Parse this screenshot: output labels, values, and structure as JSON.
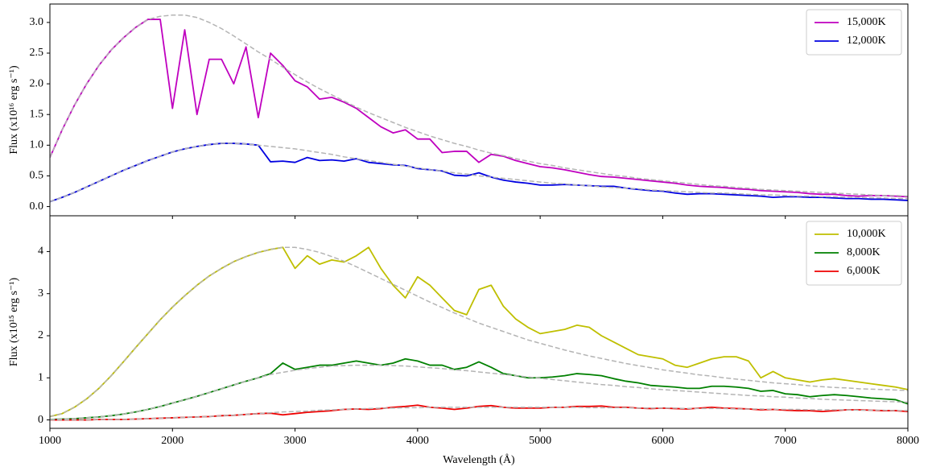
{
  "chart_data": [
    {
      "type": "line",
      "ylabel": "Flux (x10¹⁶ erg s⁻¹)",
      "x": [
        1000,
        1100,
        1200,
        1300,
        1400,
        1500,
        1600,
        1700,
        1800,
        1900,
        2000,
        2100,
        2200,
        2300,
        2400,
        2500,
        2600,
        2700,
        2800,
        2900,
        3000,
        3100,
        3200,
        3300,
        3400,
        3500,
        3600,
        3700,
        3800,
        3900,
        4000,
        4100,
        4200,
        4300,
        4400,
        4500,
        4600,
        4700,
        4800,
        4900,
        5000,
        5100,
        5200,
        5300,
        5400,
        5500,
        5600,
        5700,
        5800,
        5900,
        6000,
        6100,
        6200,
        6300,
        6400,
        6500,
        6600,
        6700,
        6800,
        6900,
        7000,
        7100,
        7200,
        7300,
        7400,
        7500,
        7600,
        7700,
        7800,
        7900,
        8000
      ],
      "xlim": [
        1000,
        8000
      ],
      "ylim": [
        -0.15,
        3.3
      ],
      "yticks": [
        {
          "value": 0,
          "label": "0.0"
        },
        0.5,
        {
          "value": 1,
          "label": "1.0"
        },
        1.5,
        {
          "value": 2,
          "label": "2.0"
        },
        2.5,
        {
          "value": 3,
          "label": "3.0"
        }
      ],
      "legend": "upper right",
      "series": [
        {
          "name": "15,000K",
          "color": "#bf00bf",
          "values": [
            0.8,
            1.25,
            1.65,
            2.0,
            2.3,
            2.55,
            2.75,
            2.92,
            3.05,
            3.05,
            1.6,
            2.88,
            1.5,
            2.4,
            2.4,
            2.0,
            2.6,
            1.45,
            2.5,
            2.3,
            2.05,
            1.95,
            1.75,
            1.78,
            1.7,
            1.6,
            1.45,
            1.3,
            1.2,
            1.25,
            1.1,
            1.1,
            0.88,
            0.9,
            0.9,
            0.72,
            0.85,
            0.82,
            0.75,
            0.7,
            0.65,
            0.63,
            0.6,
            0.56,
            0.52,
            0.49,
            0.48,
            0.46,
            0.44,
            0.42,
            0.4,
            0.38,
            0.35,
            0.33,
            0.32,
            0.31,
            0.29,
            0.28,
            0.26,
            0.25,
            0.24,
            0.23,
            0.21,
            0.2,
            0.2,
            0.18,
            0.17,
            0.18,
            0.18,
            0.17,
            0.16
          ]
        },
        {
          "name": "12,000K",
          "color": "#0000e0",
          "values": [
            0.08,
            0.15,
            0.23,
            0.32,
            0.41,
            0.5,
            0.59,
            0.67,
            0.75,
            0.82,
            0.89,
            0.94,
            0.98,
            1.01,
            1.03,
            1.03,
            1.02,
            1.0,
            0.73,
            0.74,
            0.72,
            0.8,
            0.75,
            0.76,
            0.74,
            0.78,
            0.72,
            0.7,
            0.68,
            0.67,
            0.62,
            0.6,
            0.58,
            0.51,
            0.5,
            0.55,
            0.48,
            0.43,
            0.4,
            0.38,
            0.35,
            0.35,
            0.36,
            0.35,
            0.34,
            0.33,
            0.33,
            0.3,
            0.28,
            0.26,
            0.25,
            0.22,
            0.2,
            0.21,
            0.21,
            0.2,
            0.19,
            0.18,
            0.17,
            0.15,
            0.16,
            0.16,
            0.15,
            0.15,
            0.14,
            0.13,
            0.13,
            0.12,
            0.12,
            0.11,
            0.1
          ]
        },
        {
          "color": "#b4b4b4",
          "dashed": true,
          "values": [
            0.8,
            1.25,
            1.65,
            2.0,
            2.3,
            2.55,
            2.75,
            2.92,
            3.05,
            3.1,
            3.12,
            3.12,
            3.08,
            3.0,
            2.9,
            2.78,
            2.65,
            2.52,
            2.4,
            2.27,
            2.15,
            2.03,
            1.92,
            1.82,
            1.72,
            1.62,
            1.53,
            1.45,
            1.37,
            1.29,
            1.22,
            1.15,
            1.09,
            1.03,
            0.98,
            0.92,
            0.87,
            0.83,
            0.78,
            0.74,
            0.7,
            0.67,
            0.63,
            0.6,
            0.57,
            0.54,
            0.51,
            0.49,
            0.46,
            0.44,
            0.42,
            0.4,
            0.38,
            0.36,
            0.34,
            0.33,
            0.31,
            0.3,
            0.28,
            0.27,
            0.26,
            0.25,
            0.24,
            0.23,
            0.22,
            0.21,
            0.2,
            0.19,
            0.18,
            0.18,
            0.17
          ]
        },
        {
          "color": "#b4b4b4",
          "dashed": true,
          "values": [
            0.08,
            0.15,
            0.23,
            0.32,
            0.41,
            0.5,
            0.59,
            0.67,
            0.75,
            0.82,
            0.89,
            0.94,
            0.98,
            1.01,
            1.03,
            1.03,
            1.02,
            1.0,
            0.98,
            0.96,
            0.94,
            0.91,
            0.88,
            0.85,
            0.81,
            0.78,
            0.75,
            0.72,
            0.69,
            0.66,
            0.63,
            0.6,
            0.58,
            0.55,
            0.53,
            0.5,
            0.48,
            0.46,
            0.44,
            0.42,
            0.4,
            0.38,
            0.37,
            0.35,
            0.34,
            0.32,
            0.31,
            0.3,
            0.29,
            0.27,
            0.26,
            0.25,
            0.24,
            0.23,
            0.22,
            0.22,
            0.21,
            0.2,
            0.19,
            0.19,
            0.18,
            0.17,
            0.17,
            0.16,
            0.16,
            0.15,
            0.15,
            0.14,
            0.14,
            0.13,
            0.13
          ]
        }
      ]
    },
    {
      "type": "line",
      "ylabel": "Flux (x10¹⁵ erg s⁻¹)",
      "xlabel": "Wavelength (Å)",
      "x": [
        1000,
        1100,
        1200,
        1300,
        1400,
        1500,
        1600,
        1700,
        1800,
        1900,
        2000,
        2100,
        2200,
        2300,
        2400,
        2500,
        2600,
        2700,
        2800,
        2900,
        3000,
        3100,
        3200,
        3300,
        3400,
        3500,
        3600,
        3700,
        3800,
        3900,
        4000,
        4100,
        4200,
        4300,
        4400,
        4500,
        4600,
        4700,
        4800,
        4900,
        5000,
        5100,
        5200,
        5300,
        5400,
        5500,
        5600,
        5700,
        5800,
        5900,
        6000,
        6100,
        6200,
        6300,
        6400,
        6500,
        6600,
        6700,
        6800,
        6900,
        7000,
        7100,
        7200,
        7300,
        7400,
        7500,
        7600,
        7700,
        7800,
        7900,
        8000
      ],
      "xlim": [
        1000,
        8000
      ],
      "ylim": [
        -0.2,
        4.85
      ],
      "xticks": [
        1000,
        2000,
        3000,
        4000,
        5000,
        6000,
        7000,
        8000
      ],
      "yticks": [
        0,
        1,
        2,
        3,
        4
      ],
      "legend": "upper right",
      "series": [
        {
          "name": "10,000K",
          "color": "#bfbf00",
          "values": [
            0.08,
            0.15,
            0.3,
            0.5,
            0.75,
            1.05,
            1.38,
            1.72,
            2.05,
            2.38,
            2.68,
            2.95,
            3.2,
            3.42,
            3.6,
            3.76,
            3.88,
            3.98,
            4.05,
            4.1,
            3.6,
            3.9,
            3.7,
            3.8,
            3.75,
            3.9,
            4.1,
            3.6,
            3.2,
            2.9,
            3.4,
            3.2,
            2.9,
            2.6,
            2.5,
            3.1,
            3.2,
            2.7,
            2.4,
            2.2,
            2.05,
            2.1,
            2.15,
            2.25,
            2.2,
            2.0,
            1.85,
            1.7,
            1.55,
            1.5,
            1.45,
            1.3,
            1.25,
            1.35,
            1.45,
            1.5,
            1.5,
            1.4,
            1.0,
            1.15,
            1.0,
            0.95,
            0.9,
            0.95,
            0.98,
            0.94,
            0.9,
            0.86,
            0.82,
            0.78,
            0.72
          ]
        },
        {
          "name": "8,000K",
          "color": "#008000",
          "values": [
            0.01,
            0.02,
            0.03,
            0.05,
            0.07,
            0.1,
            0.14,
            0.19,
            0.25,
            0.32,
            0.4,
            0.48,
            0.56,
            0.65,
            0.74,
            0.83,
            0.92,
            1.0,
            1.1,
            1.35,
            1.2,
            1.25,
            1.3,
            1.3,
            1.35,
            1.4,
            1.35,
            1.3,
            1.35,
            1.45,
            1.4,
            1.3,
            1.3,
            1.2,
            1.25,
            1.38,
            1.25,
            1.1,
            1.05,
            1.0,
            1.0,
            1.02,
            1.05,
            1.1,
            1.08,
            1.05,
            0.98,
            0.92,
            0.88,
            0.82,
            0.8,
            0.78,
            0.75,
            0.75,
            0.8,
            0.8,
            0.78,
            0.75,
            0.68,
            0.7,
            0.62,
            0.6,
            0.55,
            0.58,
            0.6,
            0.58,
            0.55,
            0.52,
            0.5,
            0.48,
            0.38
          ]
        },
        {
          "name": "6,000K",
          "color": "#ee0000",
          "values": [
            0,
            0,
            0,
            0,
            0.01,
            0.01,
            0.01,
            0.02,
            0.03,
            0.04,
            0.05,
            0.06,
            0.07,
            0.08,
            0.1,
            0.11,
            0.13,
            0.15,
            0.16,
            0.12,
            0.15,
            0.18,
            0.2,
            0.22,
            0.25,
            0.26,
            0.25,
            0.27,
            0.3,
            0.32,
            0.35,
            0.3,
            0.28,
            0.25,
            0.28,
            0.32,
            0.34,
            0.3,
            0.28,
            0.28,
            0.28,
            0.3,
            0.3,
            0.32,
            0.32,
            0.33,
            0.3,
            0.3,
            0.28,
            0.27,
            0.28,
            0.27,
            0.26,
            0.28,
            0.3,
            0.28,
            0.27,
            0.26,
            0.24,
            0.25,
            0.23,
            0.22,
            0.22,
            0.2,
            0.22,
            0.24,
            0.24,
            0.23,
            0.22,
            0.22,
            0.2
          ]
        },
        {
          "color": "#b4b4b4",
          "dashed": true,
          "values": [
            0.08,
            0.15,
            0.3,
            0.5,
            0.75,
            1.05,
            1.38,
            1.72,
            2.05,
            2.38,
            2.68,
            2.95,
            3.2,
            3.42,
            3.6,
            3.76,
            3.88,
            3.98,
            4.05,
            4.1,
            4.1,
            4.05,
            3.98,
            3.88,
            3.77,
            3.64,
            3.5,
            3.36,
            3.22,
            3.08,
            2.94,
            2.8,
            2.67,
            2.54,
            2.42,
            2.3,
            2.2,
            2.1,
            2.0,
            1.9,
            1.82,
            1.74,
            1.66,
            1.59,
            1.52,
            1.46,
            1.4,
            1.34,
            1.29,
            1.24,
            1.19,
            1.15,
            1.11,
            1.07,
            1.04,
            1.0,
            0.97,
            0.94,
            0.91,
            0.88,
            0.86,
            0.84,
            0.81,
            0.79,
            0.77,
            0.76,
            0.74,
            0.73,
            0.72,
            0.71,
            0.7
          ]
        },
        {
          "color": "#b4b4b4",
          "dashed": true,
          "values": [
            0.01,
            0.02,
            0.03,
            0.05,
            0.07,
            0.1,
            0.14,
            0.19,
            0.25,
            0.32,
            0.4,
            0.48,
            0.56,
            0.65,
            0.74,
            0.83,
            0.92,
            1.0,
            1.08,
            1.13,
            1.18,
            1.22,
            1.25,
            1.28,
            1.29,
            1.3,
            1.3,
            1.3,
            1.29,
            1.28,
            1.26,
            1.24,
            1.22,
            1.19,
            1.17,
            1.14,
            1.11,
            1.08,
            1.05,
            1.02,
            0.99,
            0.96,
            0.93,
            0.9,
            0.87,
            0.84,
            0.82,
            0.79,
            0.77,
            0.74,
            0.72,
            0.7,
            0.68,
            0.66,
            0.64,
            0.62,
            0.6,
            0.58,
            0.57,
            0.55,
            0.54,
            0.52,
            0.51,
            0.49,
            0.48,
            0.47,
            0.46,
            0.45,
            0.44,
            0.43,
            0.42
          ]
        },
        {
          "color": "#b4b4b4",
          "dashed": true,
          "values": [
            0,
            0,
            0,
            0,
            0.01,
            0.01,
            0.01,
            0.02,
            0.03,
            0.04,
            0.05,
            0.06,
            0.07,
            0.08,
            0.1,
            0.11,
            0.13,
            0.15,
            0.17,
            0.19,
            0.2,
            0.21,
            0.23,
            0.24,
            0.25,
            0.26,
            0.27,
            0.28,
            0.28,
            0.29,
            0.29,
            0.3,
            0.3,
            0.3,
            0.3,
            0.3,
            0.3,
            0.3,
            0.3,
            0.3,
            0.3,
            0.3,
            0.3,
            0.3,
            0.29,
            0.29,
            0.29,
            0.29,
            0.28,
            0.28,
            0.28,
            0.28,
            0.27,
            0.27,
            0.27,
            0.27,
            0.26,
            0.26,
            0.26,
            0.25,
            0.25,
            0.25,
            0.24,
            0.24,
            0.24,
            0.24,
            0.23,
            0.23,
            0.23,
            0.22,
            0.22
          ]
        }
      ]
    }
  ]
}
